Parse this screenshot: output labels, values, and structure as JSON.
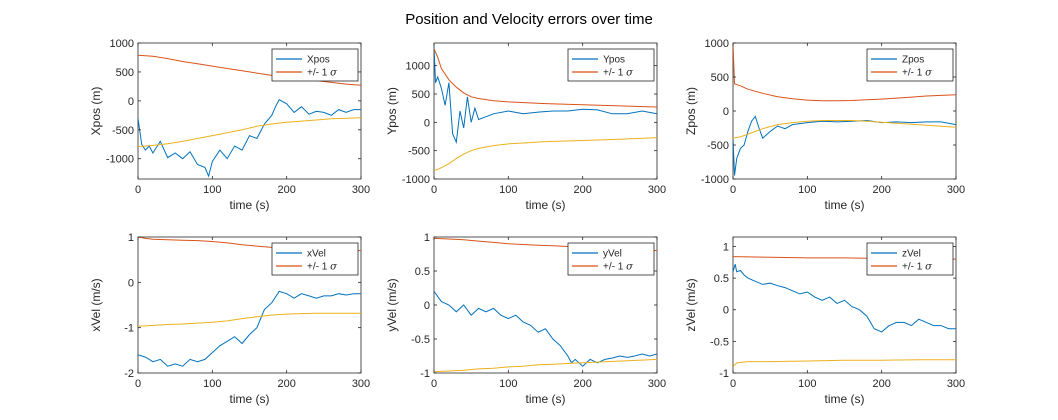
{
  "figure": {
    "title": "Position and Velocity errors over time",
    "colors": {
      "signal": "#0072BD",
      "upper": "#D95319",
      "lower": "#EDB120",
      "axis": "#262626"
    }
  },
  "chart_data": [
    {
      "type": "line",
      "xlabel": "time (s)",
      "ylabel": "Xpos (m)",
      "xlim": [
        0,
        300
      ],
      "ylim": [
        -1350,
        1000
      ],
      "xticks": [
        "0",
        "100",
        "200",
        "300"
      ],
      "yticks": [
        "-1000",
        "-500",
        "0",
        "500",
        "1000"
      ],
      "legend": [
        "Xpos",
        "+/- 1 σ"
      ],
      "legend_position": "top-right",
      "series": [
        {
          "name": "Xpos",
          "x": [
            0,
            5,
            10,
            15,
            20,
            30,
            40,
            50,
            60,
            70,
            80,
            90,
            95,
            100,
            110,
            120,
            130,
            140,
            150,
            160,
            170,
            180,
            185,
            190,
            200,
            210,
            220,
            230,
            240,
            250,
            260,
            270,
            280,
            290,
            300
          ],
          "y": [
            -300,
            -750,
            -850,
            -780,
            -900,
            -700,
            -980,
            -900,
            -1000,
            -880,
            -1100,
            -1150,
            -1300,
            -1050,
            -850,
            -1000,
            -780,
            -850,
            -600,
            -650,
            -400,
            -250,
            -100,
            20,
            -50,
            -200,
            -100,
            -230,
            -180,
            -200,
            -250,
            -150,
            -200,
            -150,
            -150
          ]
        },
        {
          "name": "upper",
          "x": [
            0,
            20,
            40,
            60,
            80,
            100,
            120,
            140,
            160,
            180,
            200,
            220,
            240,
            260,
            280,
            300
          ],
          "y": [
            790,
            770,
            730,
            680,
            640,
            600,
            560,
            520,
            480,
            440,
            410,
            380,
            350,
            320,
            290,
            270
          ]
        },
        {
          "name": "lower",
          "x": [
            0,
            20,
            40,
            60,
            80,
            100,
            120,
            140,
            160,
            180,
            200,
            220,
            240,
            260,
            280,
            300
          ],
          "y": [
            -790,
            -770,
            -740,
            -700,
            -650,
            -600,
            -550,
            -500,
            -440,
            -400,
            -370,
            -350,
            -330,
            -310,
            -300,
            -290
          ]
        }
      ]
    },
    {
      "type": "line",
      "xlabel": "time (s)",
      "ylabel": "Ypos (m)",
      "xlim": [
        0,
        300
      ],
      "ylim": [
        -1000,
        1400
      ],
      "xticks": [
        "0",
        "100",
        "200",
        "300"
      ],
      "yticks": [
        "-1000",
        "-500",
        "0",
        "500",
        "1000"
      ],
      "legend": [
        "Ypos",
        "+/- 1 σ"
      ],
      "legend_position": "top-right",
      "series": [
        {
          "name": "Ypos",
          "x": [
            0,
            2,
            5,
            10,
            15,
            20,
            25,
            30,
            35,
            40,
            45,
            50,
            55,
            60,
            70,
            80,
            100,
            120,
            140,
            160,
            180,
            200,
            220,
            240,
            260,
            280,
            300
          ],
          "y": [
            1350,
            700,
            800,
            600,
            300,
            700,
            -200,
            -350,
            200,
            -100,
            450,
            0,
            250,
            50,
            100,
            150,
            200,
            150,
            180,
            200,
            200,
            230,
            220,
            150,
            150,
            200,
            150
          ]
        },
        {
          "name": "upper",
          "x": [
            0,
            5,
            10,
            20,
            30,
            40,
            50,
            60,
            80,
            100,
            150,
            200,
            250,
            300
          ],
          "y": [
            1300,
            1150,
            950,
            750,
            620,
            520,
            450,
            420,
            380,
            360,
            330,
            310,
            290,
            270
          ]
        },
        {
          "name": "lower",
          "x": [
            0,
            5,
            10,
            20,
            30,
            40,
            50,
            60,
            80,
            100,
            150,
            200,
            250,
            300
          ],
          "y": [
            -850,
            -830,
            -800,
            -730,
            -640,
            -560,
            -500,
            -460,
            -410,
            -380,
            -340,
            -320,
            -300,
            -270
          ]
        }
      ]
    },
    {
      "type": "line",
      "xlabel": "time (s)",
      "ylabel": "Zpos (m)",
      "xlim": [
        0,
        300
      ],
      "ylim": [
        -1000,
        1000
      ],
      "xticks": [
        "0",
        "100",
        "200",
        "300"
      ],
      "yticks": [
        "-1000",
        "-500",
        "0",
        "500",
        "1000"
      ],
      "legend": [
        "Zpos",
        "+/- 1 σ"
      ],
      "legend_position": "top-right",
      "series": [
        {
          "name": "Zpos",
          "x": [
            0,
            2,
            5,
            10,
            15,
            20,
            25,
            30,
            35,
            40,
            45,
            50,
            60,
            70,
            80,
            100,
            120,
            140,
            160,
            180,
            200,
            220,
            240,
            260,
            280,
            300
          ],
          "y": [
            -400,
            -950,
            -700,
            -550,
            -500,
            -300,
            -150,
            -80,
            -250,
            -400,
            -350,
            -300,
            -220,
            -260,
            -200,
            -170,
            -150,
            -160,
            -150,
            -140,
            -170,
            -160,
            -170,
            -160,
            -160,
            -200
          ]
        },
        {
          "name": "upper",
          "x": [
            0,
            2,
            10,
            20,
            40,
            60,
            80,
            100,
            120,
            140,
            160,
            180,
            200,
            220,
            240,
            260,
            280,
            300
          ],
          "y": [
            1000,
            400,
            370,
            320,
            260,
            210,
            180,
            160,
            150,
            150,
            155,
            165,
            175,
            190,
            205,
            220,
            230,
            240
          ]
        },
        {
          "name": "lower",
          "x": [
            0,
            10,
            20,
            30,
            40,
            50,
            60,
            80,
            100,
            120,
            140,
            160,
            180,
            200,
            220,
            240,
            260,
            280,
            300
          ],
          "y": [
            -400,
            -380,
            -340,
            -300,
            -260,
            -230,
            -200,
            -170,
            -150,
            -140,
            -140,
            -140,
            -150,
            -165,
            -180,
            -195,
            -210,
            -225,
            -240
          ]
        }
      ]
    },
    {
      "type": "line",
      "xlabel": "time (s)",
      "ylabel": "xVel (m/s)",
      "xlim": [
        0,
        300
      ],
      "ylim": [
        -2,
        1
      ],
      "xticks": [
        "0",
        "100",
        "200",
        "300"
      ],
      "yticks": [
        "-2",
        "-1",
        "0",
        "1"
      ],
      "legend": [
        "xVel",
        "+/- 1 σ"
      ],
      "legend_position": "top-right",
      "series": [
        {
          "name": "xVel",
          "x": [
            0,
            10,
            20,
            30,
            40,
            50,
            60,
            70,
            80,
            90,
            100,
            110,
            120,
            130,
            140,
            150,
            160,
            170,
            180,
            190,
            200,
            210,
            220,
            230,
            240,
            250,
            260,
            270,
            280,
            290,
            300
          ],
          "y": [
            -1.6,
            -1.65,
            -1.75,
            -1.7,
            -1.85,
            -1.8,
            -1.85,
            -1.7,
            -1.75,
            -1.7,
            -1.55,
            -1.4,
            -1.3,
            -1.2,
            -1.35,
            -1.15,
            -1.0,
            -0.6,
            -0.45,
            -0.2,
            -0.25,
            -0.35,
            -0.25,
            -0.3,
            -0.35,
            -0.3,
            -0.3,
            -0.25,
            -0.28,
            -0.25,
            -0.25
          ]
        },
        {
          "name": "upper",
          "x": [
            0,
            10,
            20,
            40,
            60,
            80,
            100,
            120,
            140,
            160,
            180,
            200,
            220,
            240,
            260,
            280,
            300
          ],
          "y": [
            1.0,
            0.97,
            0.95,
            0.94,
            0.93,
            0.92,
            0.9,
            0.87,
            0.83,
            0.8,
            0.77,
            0.75,
            0.73,
            0.72,
            0.71,
            0.7,
            0.7
          ]
        },
        {
          "name": "lower",
          "x": [
            0,
            10,
            20,
            40,
            60,
            80,
            100,
            120,
            140,
            160,
            180,
            200,
            220,
            240,
            260,
            280,
            300
          ],
          "y": [
            -0.97,
            -0.96,
            -0.95,
            -0.93,
            -0.92,
            -0.9,
            -0.88,
            -0.85,
            -0.8,
            -0.76,
            -0.72,
            -0.7,
            -0.69,
            -0.68,
            -0.68,
            -0.68,
            -0.68
          ]
        }
      ]
    },
    {
      "type": "line",
      "xlabel": "time (s)",
      "ylabel": "yVel (m/s)",
      "xlim": [
        0,
        300
      ],
      "ylim": [
        -1,
        1
      ],
      "xticks": [
        "0",
        "100",
        "200",
        "300"
      ],
      "yticks": [
        "-1",
        "-0.5",
        "0",
        "0.5",
        "1"
      ],
      "legend": [
        "yVel",
        "+/- 1 σ"
      ],
      "legend_position": "top-right",
      "series": [
        {
          "name": "yVel",
          "x": [
            0,
            10,
            20,
            30,
            40,
            50,
            60,
            70,
            80,
            90,
            100,
            110,
            120,
            130,
            140,
            150,
            160,
            170,
            180,
            185,
            190,
            200,
            210,
            220,
            230,
            240,
            250,
            260,
            270,
            280,
            290,
            300
          ],
          "y": [
            0.2,
            0.05,
            0.0,
            -0.1,
            0.0,
            -0.15,
            -0.05,
            -0.1,
            -0.05,
            -0.15,
            -0.2,
            -0.15,
            -0.25,
            -0.3,
            -0.4,
            -0.35,
            -0.5,
            -0.6,
            -0.75,
            -0.85,
            -0.8,
            -0.9,
            -0.8,
            -0.85,
            -0.8,
            -0.78,
            -0.75,
            -0.77,
            -0.75,
            -0.72,
            -0.75,
            -0.72
          ]
        },
        {
          "name": "upper",
          "x": [
            0,
            20,
            40,
            60,
            80,
            100,
            120,
            140,
            160,
            180,
            200,
            220,
            240,
            260,
            280,
            300
          ],
          "y": [
            0.98,
            0.97,
            0.96,
            0.94,
            0.92,
            0.9,
            0.89,
            0.88,
            0.87,
            0.86,
            0.85,
            0.84,
            0.83,
            0.82,
            0.81,
            0.8
          ]
        },
        {
          "name": "lower",
          "x": [
            0,
            20,
            40,
            60,
            80,
            100,
            120,
            140,
            160,
            180,
            200,
            220,
            240,
            260,
            280,
            300
          ],
          "y": [
            -0.98,
            -0.97,
            -0.96,
            -0.94,
            -0.93,
            -0.91,
            -0.9,
            -0.88,
            -0.87,
            -0.86,
            -0.85,
            -0.84,
            -0.83,
            -0.82,
            -0.81,
            -0.8
          ]
        }
      ]
    },
    {
      "type": "line",
      "xlabel": "time (s)",
      "ylabel": "zVel (m/s)",
      "xlim": [
        0,
        300
      ],
      "ylim": [
        -1,
        1.15
      ],
      "xticks": [
        "0",
        "100",
        "200",
        "300"
      ],
      "yticks": [
        "-1",
        "-0.5",
        "0",
        "0.5",
        "1"
      ],
      "legend": [
        "zVel",
        "+/- 1 σ"
      ],
      "legend_position": "top-right",
      "series": [
        {
          "name": "zVel",
          "x": [
            0,
            3,
            5,
            10,
            15,
            20,
            30,
            40,
            50,
            60,
            70,
            80,
            90,
            100,
            110,
            120,
            130,
            140,
            150,
            160,
            170,
            180,
            190,
            200,
            210,
            220,
            230,
            240,
            250,
            260,
            270,
            280,
            290,
            300
          ],
          "y": [
            0.6,
            0.72,
            0.6,
            0.62,
            0.55,
            0.5,
            0.45,
            0.4,
            0.42,
            0.38,
            0.35,
            0.3,
            0.25,
            0.28,
            0.2,
            0.15,
            0.2,
            0.1,
            0.15,
            0.05,
            0.0,
            -0.1,
            -0.3,
            -0.35,
            -0.25,
            -0.2,
            -0.2,
            -0.25,
            -0.15,
            -0.2,
            -0.25,
            -0.25,
            -0.3,
            -0.3
          ]
        },
        {
          "name": "upper",
          "x": [
            0,
            50,
            100,
            150,
            200,
            250,
            300
          ],
          "y": [
            0.84,
            0.83,
            0.82,
            0.82,
            0.81,
            0.8,
            0.8
          ]
        },
        {
          "name": "lower",
          "x": [
            0,
            5,
            20,
            50,
            100,
            150,
            200,
            250,
            300
          ],
          "y": [
            -0.9,
            -0.84,
            -0.82,
            -0.82,
            -0.81,
            -0.8,
            -0.8,
            -0.79,
            -0.79
          ]
        }
      ]
    }
  ]
}
